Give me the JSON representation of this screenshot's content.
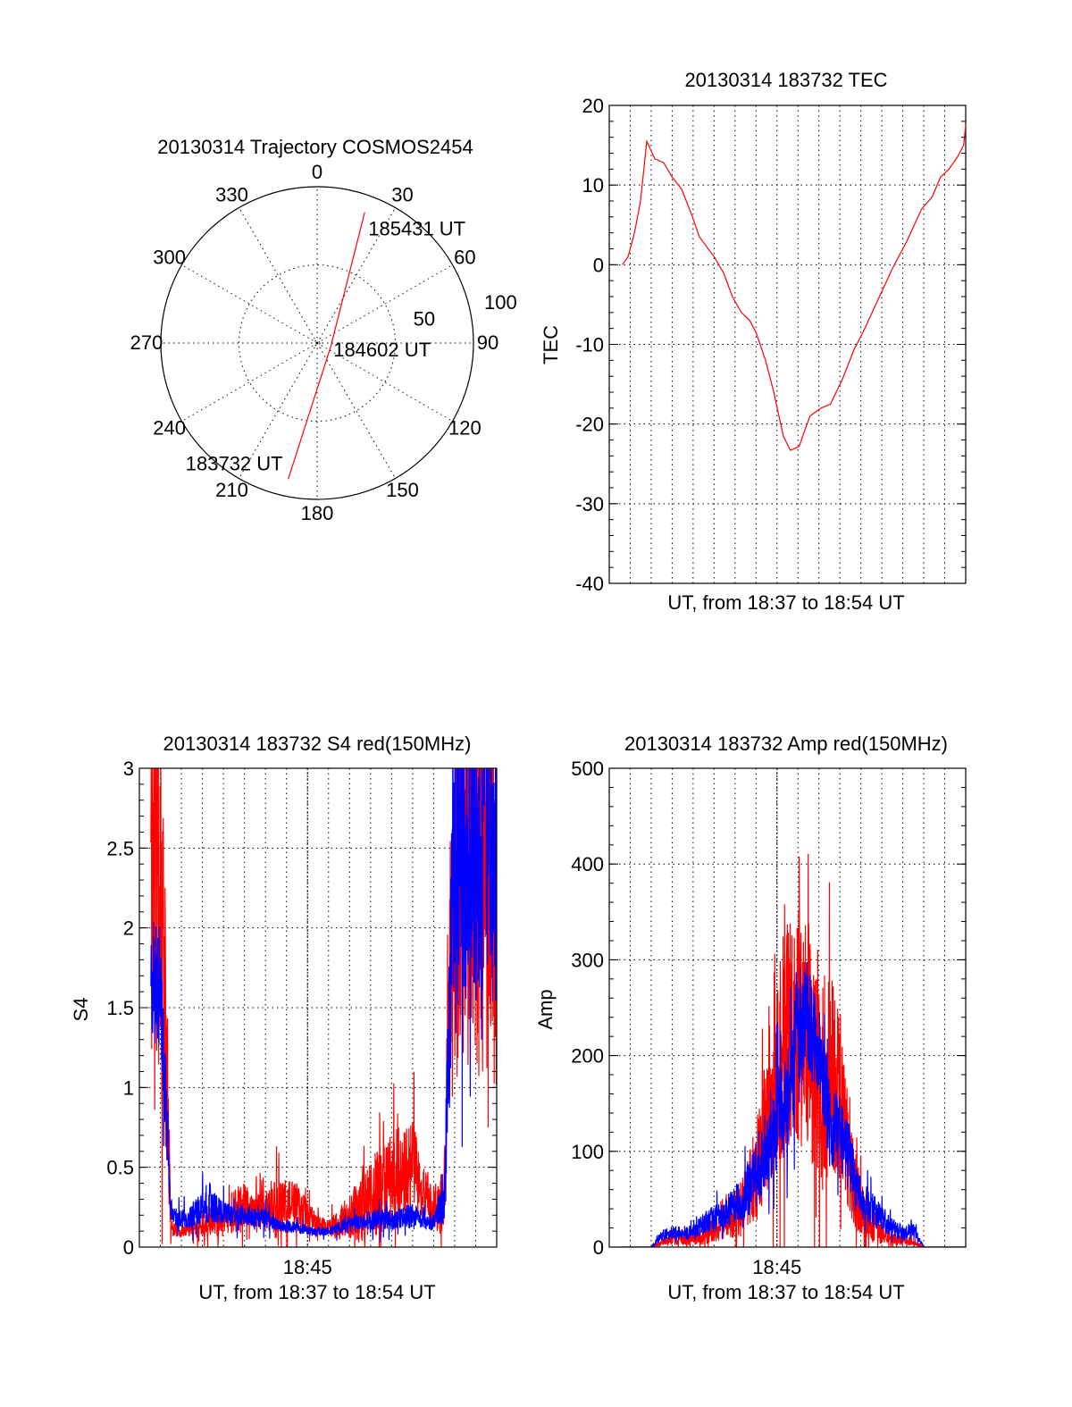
{
  "colors": {
    "red": "#ff0000",
    "blue": "#0000ff",
    "axis": "#000000"
  },
  "chart_data": [
    {
      "type": "polar",
      "id": "trajectory",
      "title": "20130314 Trajectory COSMOS2454",
      "angle_ticks": [
        "0",
        "30",
        "60",
        "90",
        "120",
        "150",
        "180",
        "210",
        "240",
        "270",
        "300",
        "330"
      ],
      "angle_values": [
        0,
        30,
        60,
        90,
        120,
        150,
        180,
        210,
        240,
        270,
        300,
        330
      ],
      "radial_ticks": [
        "50",
        "100"
      ],
      "radial_values": [
        50,
        100
      ],
      "rlim": [
        0,
        100
      ],
      "grid": true,
      "points": [
        {
          "label": "183732 UT",
          "az": 192,
          "zen": 89
        },
        {
          "label": "184602 UT",
          "az": 105,
          "zen": 9
        },
        {
          "label": "185431 UT",
          "az": 20,
          "zen": 89
        }
      ]
    },
    {
      "type": "line",
      "id": "tec",
      "title": "20130314 183732 TEC",
      "xlabel": "UT, from 18:37 to 18:54 UT",
      "ylabel": "TEC",
      "xlim": [
        0,
        17
      ],
      "ylim": [
        -40,
        20
      ],
      "yticks": [
        "20",
        "10",
        "0",
        "-10",
        "-20",
        "-30",
        "-40"
      ],
      "ytick_values": [
        20,
        10,
        0,
        -10,
        -20,
        -30,
        -40
      ],
      "grid": true,
      "x_unit": "minutes after 18:37",
      "series": [
        {
          "name": "TEC",
          "color": "red",
          "x": [
            0.62,
            0.9,
            1.2,
            1.49,
            1.79,
            2.17,
            2.6,
            3.0,
            3.45,
            3.9,
            4.3,
            5.0,
            5.45,
            5.87,
            6.3,
            6.7,
            7.0,
            7.45,
            7.85,
            8.3,
            8.64,
            9.06,
            9.57,
            10.1,
            10.55,
            11.1,
            11.7,
            12.1,
            12.8,
            13.5,
            14.2,
            14.9,
            15.4,
            15.8,
            16.2,
            16.6,
            16.9,
            17.0
          ],
          "y": [
            0,
            1,
            4,
            8,
            15.5,
            13.3,
            12.8,
            11,
            9.5,
            6.5,
            3.5,
            1.0,
            -1,
            -4,
            -6,
            -7,
            -8.5,
            -12,
            -16,
            -21.5,
            -23.3,
            -22.8,
            -19,
            -18,
            -17.5,
            -14.5,
            -10.5,
            -8.5,
            -4.5,
            -0.5,
            3,
            7,
            8.5,
            11,
            12,
            13.5,
            15,
            17.5
          ]
        }
      ]
    },
    {
      "type": "line",
      "id": "s4",
      "title": "20130314 183732 S4 red(150MHz)",
      "xlabel": "UT, from 18:37 to 18:54 UT",
      "ylabel": "S4",
      "xlim": [
        0,
        17
      ],
      "ylim": [
        0,
        3
      ],
      "xticks": [
        "18:45"
      ],
      "xtick_values": [
        8
      ],
      "yticks": [
        "3",
        "2.5",
        "2",
        "1.5",
        "1",
        "0.5",
        "0"
      ],
      "ytick_values": [
        3,
        2.5,
        2,
        1.5,
        1,
        0.5,
        0
      ],
      "grid": true,
      "x": [
        0,
        0.5,
        1,
        1.5,
        2,
        2.5,
        3,
        3.5,
        4,
        4.5,
        5,
        5.5,
        6,
        6.5,
        7,
        7.5,
        8,
        8.5,
        9,
        9.5,
        10,
        10.5,
        11,
        11.5,
        12,
        12.5,
        13,
        13.5,
        14,
        14.5,
        15,
        15.5,
        16,
        16.5,
        17
      ],
      "series": [
        {
          "name": "red",
          "color": "red",
          "mean": [
            null,
            2.5,
            2.5,
            0.12,
            0.1,
            0.12,
            0.15,
            0.18,
            0.2,
            0.22,
            0.25,
            0.22,
            0.22,
            0.25,
            0.28,
            0.25,
            0.2,
            0.15,
            0.12,
            0.14,
            0.2,
            0.22,
            0.3,
            0.35,
            0.45,
            0.45,
            0.5,
            0.35,
            0.25,
            0.3,
            2.5,
            2.5,
            2.5,
            2.5,
            2.5
          ],
          "spread": [
            null,
            1.5,
            1.5,
            0.05,
            0.04,
            0.05,
            0.08,
            0.1,
            0.1,
            0.15,
            0.15,
            0.1,
            0.15,
            0.2,
            0.15,
            0.15,
            0.1,
            0.05,
            0.05,
            0.1,
            0.15,
            0.2,
            0.25,
            0.3,
            0.3,
            0.3,
            0.3,
            0.2,
            0.15,
            0.2,
            1.5,
            1.5,
            1.5,
            1.5,
            1.5
          ]
        },
        {
          "name": "blue",
          "color": "blue",
          "mean": [
            null,
            1.7,
            1.65,
            0.2,
            0.18,
            0.2,
            0.25,
            0.25,
            0.22,
            0.2,
            0.2,
            0.18,
            0.18,
            0.15,
            0.13,
            0.12,
            0.1,
            0.1,
            0.1,
            0.12,
            0.14,
            0.15,
            0.17,
            0.18,
            0.17,
            0.18,
            0.2,
            0.18,
            0.15,
            0.3,
            2.5,
            2.5,
            2.5,
            2.5,
            2.5
          ],
          "spread": [
            null,
            0.4,
            0.4,
            0.06,
            0.06,
            0.08,
            0.1,
            0.1,
            0.08,
            0.07,
            0.07,
            0.06,
            0.06,
            0.05,
            0.04,
            0.04,
            0.03,
            0.03,
            0.03,
            0.04,
            0.05,
            0.05,
            0.06,
            0.07,
            0.06,
            0.07,
            0.08,
            0.07,
            0.05,
            0.15,
            1.0,
            1.0,
            1.0,
            1.0,
            1.0
          ]
        }
      ]
    },
    {
      "type": "line",
      "id": "amp",
      "title": "20130314 183732 Amp red(150MHz)",
      "xlabel": "UT, from 18:37 to 18:54 UT",
      "ylabel": "Amp",
      "xlim": [
        0,
        17
      ],
      "ylim": [
        0,
        500
      ],
      "xticks": [
        "18:45"
      ],
      "xtick_values": [
        8
      ],
      "yticks": [
        "500",
        "400",
        "300",
        "200",
        "100",
        "0"
      ],
      "ytick_values": [
        500,
        400,
        300,
        200,
        100,
        0
      ],
      "grid": true,
      "x": [
        0,
        0.5,
        1,
        1.5,
        2,
        2.5,
        3,
        3.5,
        4,
        4.5,
        5,
        5.5,
        6,
        6.5,
        7,
        7.5,
        8,
        8.5,
        9,
        9.5,
        10,
        10.5,
        11,
        11.5,
        12,
        12.5,
        13,
        13.5,
        14,
        14.5,
        15,
        15.5,
        16,
        16.5,
        17
      ],
      "series": [
        {
          "name": "red",
          "color": "red",
          "mean": [
            null,
            0,
            0,
            0,
            0,
            5,
            8,
            8,
            10,
            12,
            18,
            25,
            35,
            50,
            80,
            130,
            180,
            230,
            240,
            210,
            170,
            190,
            160,
            80,
            40,
            25,
            15,
            8,
            8,
            5,
            0,
            0,
            0,
            0,
            0
          ],
          "spread": [
            null,
            0,
            0,
            0,
            0,
            4,
            6,
            6,
            8,
            10,
            14,
            20,
            25,
            35,
            50,
            80,
            110,
            130,
            130,
            120,
            100,
            110,
            90,
            50,
            30,
            20,
            12,
            6,
            6,
            4,
            0,
            0,
            0,
            0,
            0
          ]
        },
        {
          "name": "blue",
          "color": "blue",
          "mean": [
            null,
            0,
            0,
            0,
            0,
            12,
            15,
            15,
            15,
            25,
            30,
            35,
            45,
            55,
            75,
            110,
            130,
            150,
            230,
            240,
            200,
            130,
            120,
            90,
            50,
            40,
            30,
            20,
            15,
            18,
            0,
            0,
            0,
            0,
            0
          ],
          "spread": [
            null,
            0,
            0,
            0,
            0,
            6,
            7,
            7,
            8,
            12,
            14,
            16,
            20,
            25,
            35,
            45,
            50,
            55,
            60,
            60,
            55,
            45,
            40,
            35,
            20,
            18,
            14,
            10,
            8,
            8,
            0,
            0,
            0,
            0,
            0
          ]
        }
      ]
    }
  ]
}
